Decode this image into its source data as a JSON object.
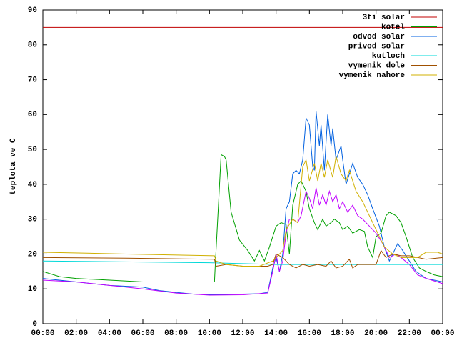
{
  "chart_data": {
    "type": "line",
    "ylabel": "teplota ve C",
    "xlim": [
      0,
      24
    ],
    "ylim": [
      0,
      90
    ],
    "xticks": [
      {
        "value": 0,
        "label": "00:00"
      },
      {
        "value": 2,
        "label": "02:00"
      },
      {
        "value": 4,
        "label": "04:00"
      },
      {
        "value": 6,
        "label": "06:00"
      },
      {
        "value": 8,
        "label": "08:00"
      },
      {
        "value": 10,
        "label": "10:00"
      },
      {
        "value": 12,
        "label": "12:00"
      },
      {
        "value": 14,
        "label": "14:00"
      },
      {
        "value": 16,
        "label": "16:00"
      },
      {
        "value": 18,
        "label": "18:00"
      },
      {
        "value": 20,
        "label": "20:00"
      },
      {
        "value": 22,
        "label": "22:00"
      },
      {
        "value": 24,
        "label": "00:00"
      }
    ],
    "yticks": [
      0,
      10,
      20,
      30,
      40,
      50,
      60,
      70,
      80,
      90
    ],
    "legend": "top-right",
    "series": [
      {
        "name": "3ti solar",
        "color": "#c00000",
        "x": [
          0,
          24
        ],
        "values": [
          85,
          85
        ]
      },
      {
        "name": "kotel",
        "color": "#00a000",
        "x": [
          0,
          1,
          2,
          4,
          6,
          8,
          10.3,
          10.35,
          10.7,
          10.9,
          11.0,
          11.3,
          11.8,
          12.3,
          12.7,
          13.0,
          13.3,
          13.6,
          14.0,
          14.3,
          14.6,
          14.8,
          15.0,
          15.3,
          15.5,
          15.8,
          16.0,
          16.3,
          16.5,
          16.8,
          17.0,
          17.3,
          17.5,
          17.8,
          18.0,
          18.3,
          18.6,
          19.0,
          19.3,
          19.5,
          19.8,
          20.0,
          20.3,
          20.6,
          20.8,
          21.2,
          21.5,
          21.8,
          22.2,
          22.6,
          23.0,
          23.5,
          24
        ],
        "values": [
          15,
          13.5,
          13,
          12.5,
          12,
          12,
          12,
          17,
          48.5,
          48,
          47,
          32,
          24,
          21,
          18,
          21,
          18,
          22,
          28,
          29,
          28.5,
          20,
          34,
          40,
          41,
          38,
          33,
          29,
          27,
          30,
          28,
          29,
          30,
          29,
          27,
          28,
          26,
          27,
          26.5,
          22,
          19,
          25,
          26,
          31,
          32,
          31,
          29,
          25,
          19,
          16,
          15,
          14,
          13.5
        ]
      },
      {
        "name": "odvod solar",
        "color": "#0060e0",
        "x": [
          0,
          2,
          4,
          6,
          7,
          8,
          9,
          10,
          11,
          12,
          13,
          13.5,
          13.8,
          14.0,
          14.2,
          14.4,
          14.6,
          14.8,
          15.0,
          15.2,
          15.4,
          15.6,
          15.8,
          16.0,
          16.2,
          16.3,
          16.4,
          16.6,
          16.7,
          16.9,
          17.1,
          17.3,
          17.4,
          17.6,
          17.9,
          18.0,
          18.2,
          18.4,
          18.6,
          18.9,
          19.2,
          19.5,
          19.8,
          20.2,
          20.5,
          20.8,
          21.0,
          21.3,
          21.6,
          22.0,
          22.4,
          23,
          24
        ],
        "values": [
          13,
          12,
          11,
          10.5,
          9.5,
          9,
          8.5,
          8.3,
          8.4,
          8.5,
          8.6,
          9,
          16,
          19,
          15,
          20,
          33,
          35,
          43,
          44,
          43,
          47,
          59,
          57,
          45,
          44,
          61,
          51,
          57,
          44,
          60,
          51,
          56,
          47,
          51,
          47,
          40,
          43,
          46,
          42,
          40,
          37,
          33,
          28,
          22,
          18,
          20,
          23,
          21,
          18,
          15,
          13,
          12
        ]
      },
      {
        "name": "privod solar",
        "color": "#c000ff",
        "x": [
          0,
          2,
          4,
          6,
          8,
          10,
          12,
          13.5,
          13.8,
          14.0,
          14.2,
          14.4,
          14.6,
          14.8,
          15.0,
          15.3,
          15.5,
          15.8,
          16.0,
          16.2,
          16.4,
          16.6,
          16.8,
          17.0,
          17.2,
          17.4,
          17.6,
          17.8,
          18.0,
          18.3,
          18.6,
          18.9,
          19.2,
          19.6,
          20,
          20.4,
          20.8,
          21.2,
          21.5,
          22,
          22.5,
          23,
          24
        ],
        "values": [
          12.5,
          12,
          11,
          10,
          8.8,
          8.2,
          8.3,
          8.8,
          15,
          20,
          15,
          18,
          26,
          30,
          30,
          29,
          31,
          38,
          36,
          33,
          39,
          34,
          37,
          34,
          38,
          35,
          37,
          33,
          35,
          32,
          34,
          31,
          30,
          28,
          26,
          23,
          19,
          20,
          19,
          17,
          14,
          13,
          11.5
        ]
      },
      {
        "name": "kutloch",
        "color": "#00d8d8",
        "x": [
          0,
          10,
          14,
          24
        ],
        "values": [
          18,
          17.5,
          17,
          17
        ]
      },
      {
        "name": "vymenik dole",
        "color": "#a05000",
        "x": [
          0,
          5,
          10.3,
          10.4,
          11,
          12,
          13.5,
          13.8,
          14.0,
          14.4,
          14.8,
          15.2,
          15.6,
          16,
          16.5,
          17.0,
          17.3,
          17.6,
          18.0,
          18.4,
          18.6,
          18.9,
          19.3,
          20,
          20.3,
          20.6,
          21,
          21.5,
          22,
          22.5,
          23,
          24
        ],
        "values": [
          19,
          18.8,
          18.5,
          16.5,
          17,
          16.5,
          16.5,
          17,
          20,
          19,
          17,
          16,
          17,
          16.5,
          17,
          16.5,
          18,
          16,
          16.5,
          18.5,
          16,
          17,
          17,
          17,
          21,
          19,
          20,
          19.5,
          19.5,
          19,
          18.5,
          19
        ]
      },
      {
        "name": "vymenik nahore",
        "color": "#d0b000",
        "x": [
          0,
          5,
          10.3,
          10.4,
          11,
          12,
          13,
          13.8,
          14.0,
          14.4,
          14.6,
          15.0,
          15.3,
          15.6,
          15.8,
          16.0,
          16.3,
          16.5,
          16.7,
          16.9,
          17.1,
          17.4,
          17.6,
          17.9,
          18.2,
          18.4,
          18.8,
          19.2,
          19.6,
          20,
          20.5,
          21,
          21.5,
          22,
          22.5,
          23,
          23.7,
          24
        ],
        "values": [
          20.5,
          20,
          19.5,
          18,
          17,
          16.5,
          16.5,
          18,
          19,
          21,
          27,
          30,
          29,
          45,
          47,
          41,
          46,
          41,
          46,
          42,
          47,
          42,
          48,
          43,
          41,
          44,
          38,
          35,
          31,
          27,
          22,
          20,
          19,
          19,
          19,
          20.5,
          20.5,
          20
        ]
      }
    ]
  }
}
